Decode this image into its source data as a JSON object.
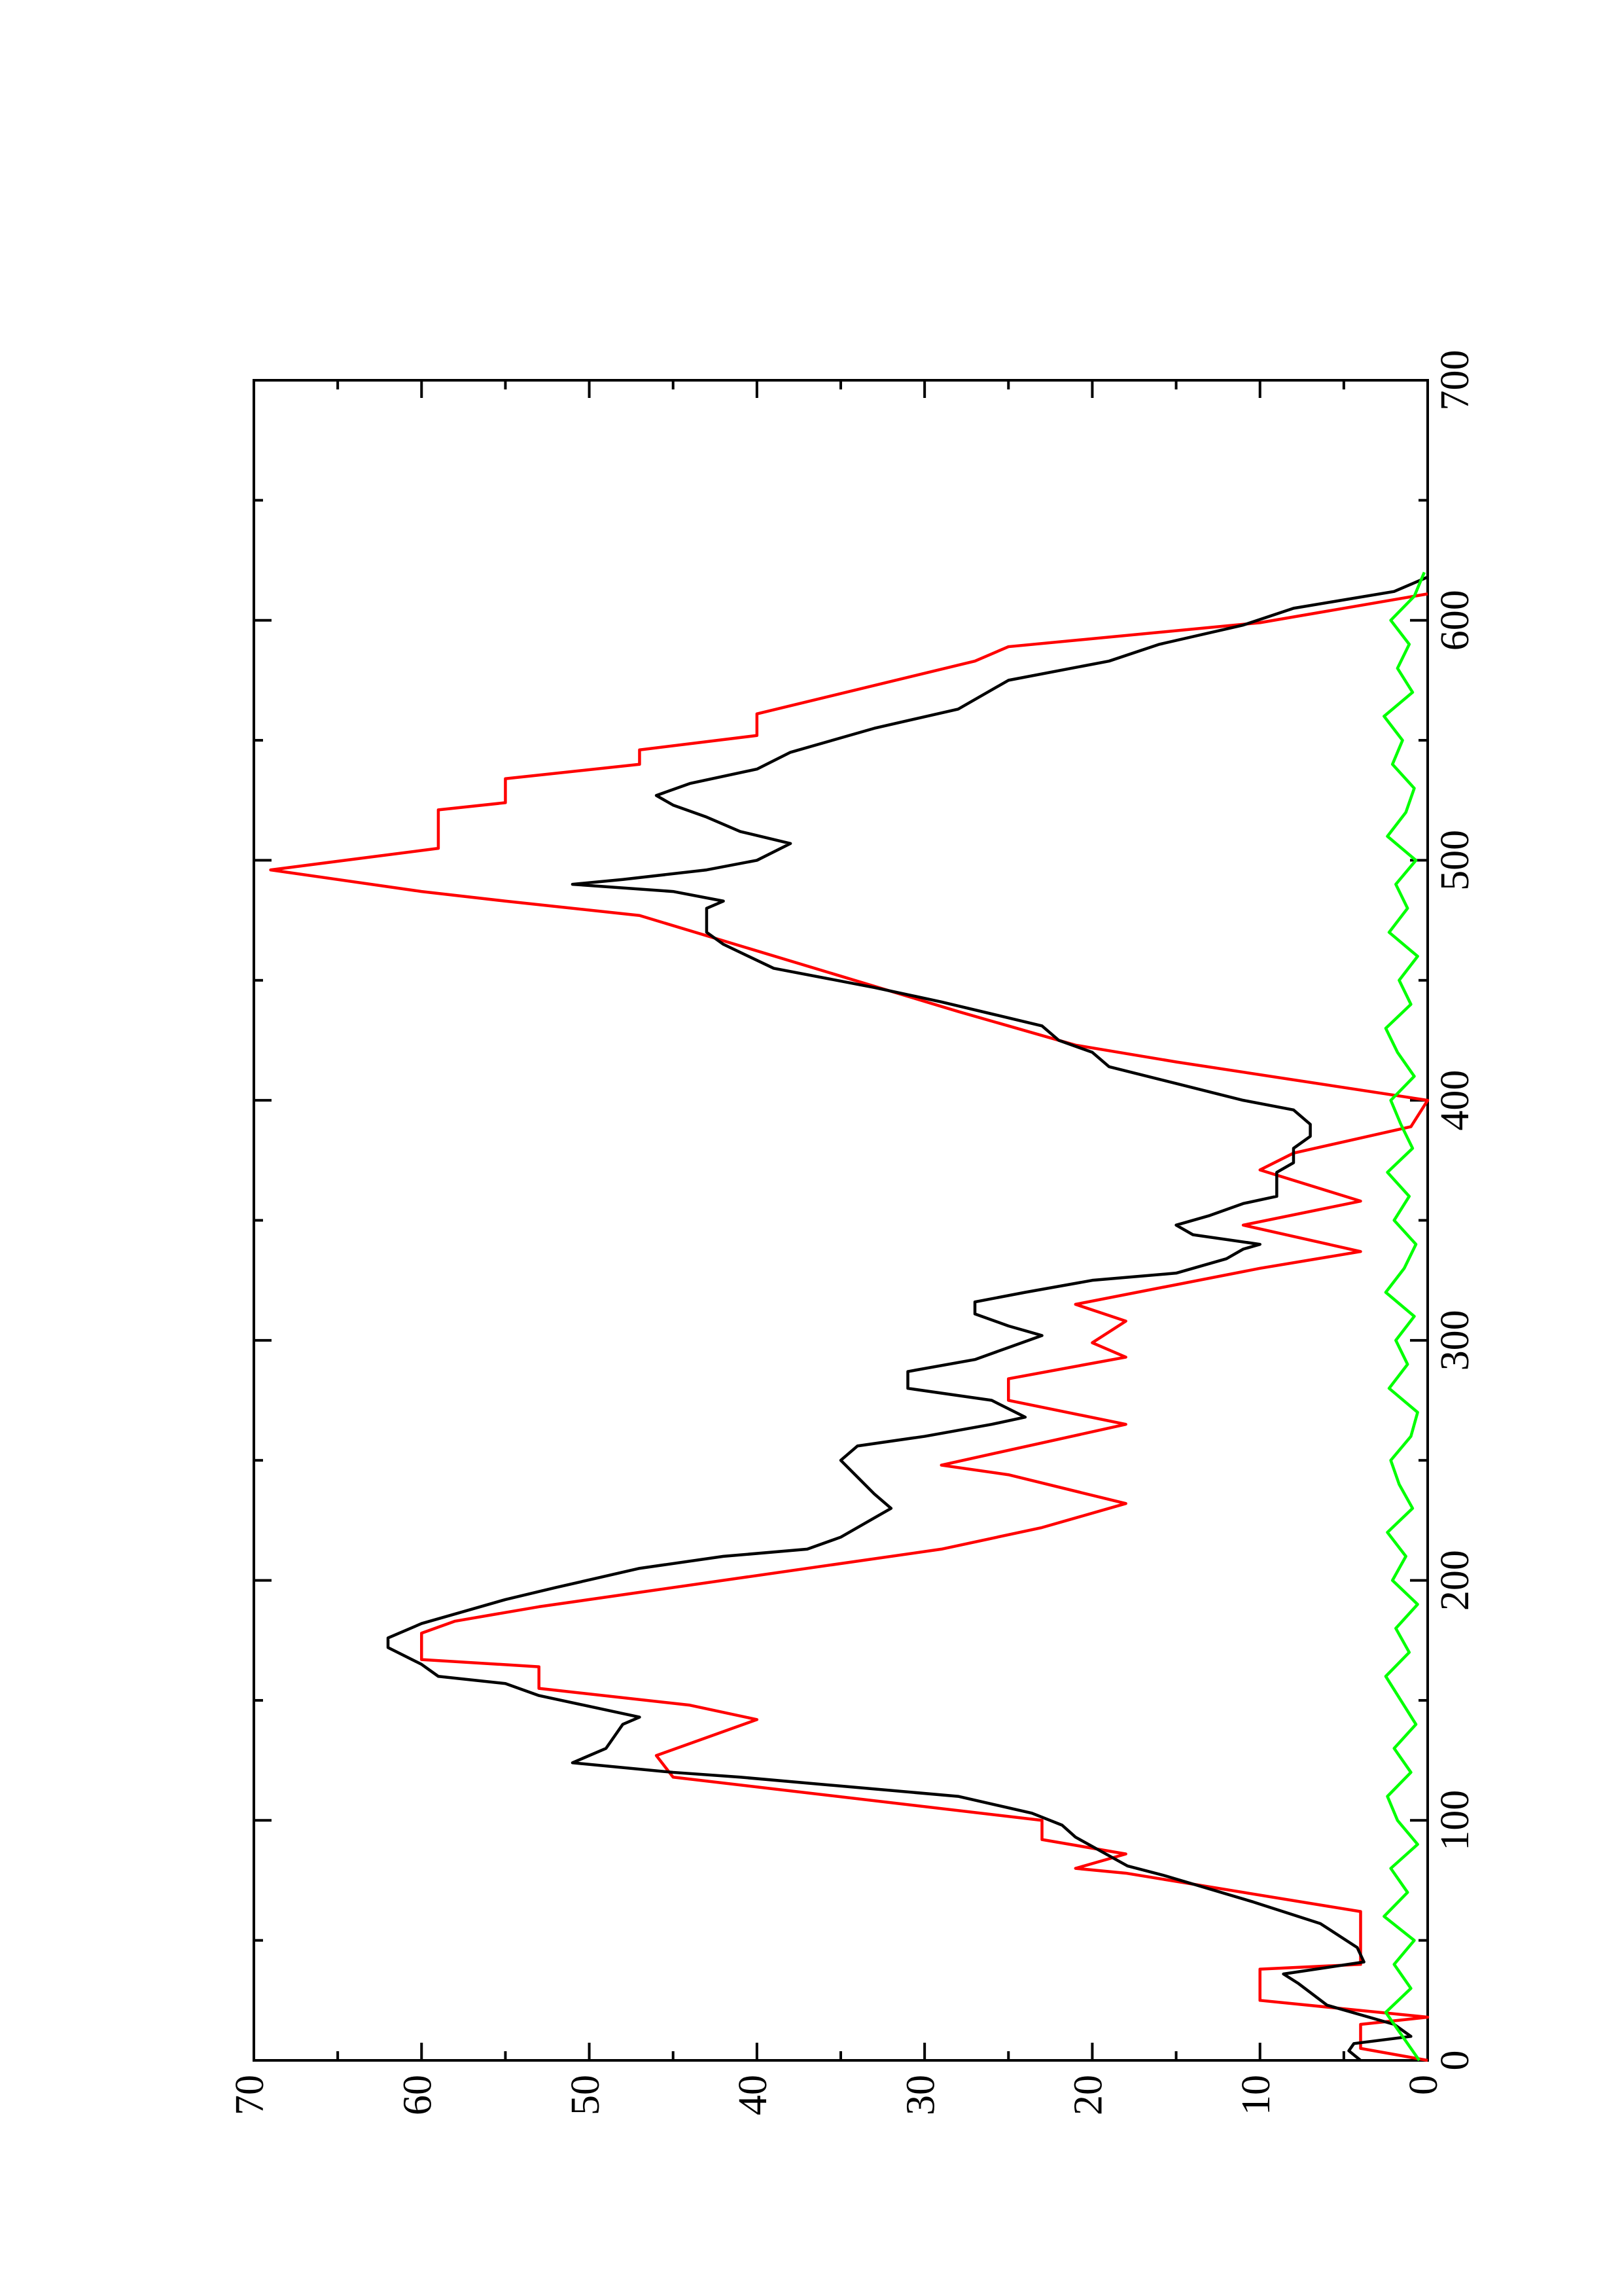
{
  "chart_data": {
    "type": "line",
    "xlim": [
      0,
      700
    ],
    "xticks": [
      0,
      100,
      200,
      300,
      400,
      500,
      600,
      700
    ],
    "xminorticks": [
      50,
      150,
      250,
      350,
      450,
      550,
      650
    ],
    "ylim": [
      0,
      70
    ],
    "yticks": [
      0,
      10,
      20,
      30,
      40,
      50,
      60,
      70
    ],
    "yminorticks": [
      5,
      15,
      25,
      35,
      45,
      55,
      65
    ],
    "rotation": -90,
    "series": [
      {
        "color": "#ff0000",
        "x": [
          0,
          5,
          15,
          18,
          25,
          38,
          40,
          62,
          78,
          80,
          86,
          92,
          100,
          118,
          127,
          142,
          148,
          155,
          164,
          167,
          178,
          183,
          189,
          195,
          213,
          222,
          232,
          244,
          248,
          265,
          275,
          284,
          293,
          299,
          308,
          315,
          330,
          337,
          348,
          358,
          371,
          378,
          389,
          400,
          416,
          423,
          431,
          437,
          477,
          483,
          487,
          496,
          505,
          521,
          524,
          534,
          540,
          546,
          552,
          561,
          583,
          589,
          599,
          611
        ],
        "values": [
          0,
          4,
          4,
          0,
          10,
          10,
          4,
          4,
          18,
          21,
          18,
          23,
          23,
          45,
          46,
          40,
          44,
          53,
          53,
          60,
          60,
          58,
          53,
          47,
          29,
          23,
          18,
          25,
          29,
          18,
          25,
          25,
          18,
          20,
          18,
          21,
          10,
          4,
          11,
          4,
          10,
          8,
          1,
          0,
          15,
          21,
          25,
          28,
          47,
          55,
          60,
          69,
          59,
          59,
          55,
          55,
          47,
          47,
          40,
          40,
          27,
          25,
          10,
          0
        ]
      },
      {
        "color": "#000000",
        "x": [
          0,
          4,
          7,
          10,
          15,
          23,
          32,
          36,
          41,
          47,
          57,
          66,
          77,
          81,
          93,
          98,
          103,
          110,
          118,
          120,
          124,
          130,
          140,
          143,
          146,
          152,
          157,
          160,
          165,
          172,
          176,
          182,
          186,
          192,
          197,
          205,
          210,
          213,
          218,
          226,
          230,
          236,
          243,
          250,
          256,
          260,
          265,
          268,
          275,
          280,
          287,
          292,
          297,
          302,
          306,
          311,
          316,
          320,
          325,
          328,
          334,
          338,
          340,
          344,
          348,
          352,
          357,
          360,
          364,
          370,
          374,
          380,
          385,
          390,
          396,
          400,
          407,
          414,
          420,
          425,
          431,
          436,
          441,
          447,
          455,
          465,
          470,
          480,
          483,
          487,
          490,
          492,
          496,
          500,
          507,
          512,
          518,
          523,
          527,
          532,
          538,
          545,
          555,
          563,
          575,
          583,
          590,
          598,
          605,
          612,
          618
        ],
        "values": [
          4,
          4.7,
          4.4,
          1,
          2,
          6,
          7.7,
          8.6,
          3.8,
          4.2,
          6.4,
          10.4,
          15.7,
          17.9,
          21,
          21.8,
          23.6,
          28,
          41,
          45,
          51,
          49,
          48,
          47,
          49,
          53,
          55,
          59,
          60,
          62,
          62,
          60,
          58,
          55,
          52,
          47,
          42,
          37,
          35,
          33,
          32,
          33,
          34,
          35,
          34,
          30,
          26,
          24,
          26,
          31,
          31,
          27,
          25,
          23,
          25,
          27,
          27,
          24,
          20,
          15,
          12,
          11,
          10,
          14,
          15,
          13,
          11,
          9,
          9,
          9,
          8,
          8,
          7,
          7,
          8,
          11,
          15,
          19,
          20,
          22,
          23,
          26,
          29,
          33,
          39,
          42,
          43,
          43,
          42,
          45,
          51,
          48,
          43,
          40,
          38,
          41,
          43,
          45,
          46,
          44,
          40,
          38,
          33,
          28,
          25,
          19,
          16,
          11,
          8,
          2,
          0
        ]
      },
      {
        "color": "#00ff00",
        "x": [
          0,
          10,
          20,
          30,
          40,
          50,
          60,
          70,
          80,
          90,
          100,
          110,
          120,
          130,
          140,
          150,
          160,
          170,
          180,
          190,
          200,
          210,
          220,
          230,
          240,
          250,
          260,
          270,
          280,
          290,
          300,
          310,
          320,
          330,
          340,
          350,
          360,
          370,
          380,
          390,
          400,
          410,
          420,
          430,
          440,
          450,
          460,
          470,
          480,
          490,
          500,
          510,
          520,
          530,
          540,
          550,
          560,
          570,
          580,
          590,
          600,
          610,
          620
        ],
        "values": [
          0.5,
          1.5,
          2.5,
          1,
          2,
          0.8,
          2.6,
          1.2,
          2.2,
          0.6,
          1.8,
          2.4,
          1,
          2,
          0.7,
          1.6,
          2.5,
          1.1,
          1.9,
          0.6,
          2.1,
          1.3,
          2.4,
          0.9,
          1.7,
          2.2,
          1,
          0.6,
          2.3,
          1.2,
          1.9,
          0.8,
          2.5,
          1.4,
          0.7,
          2,
          1.1,
          2.4,
          0.9,
          1.6,
          2.2,
          0.8,
          1.8,
          2.5,
          1,
          1.7,
          0.6,
          2.3,
          1.2,
          1.9,
          0.7,
          2.4,
          1.3,
          0.8,
          2.1,
          1.5,
          2.6,
          0.9,
          1.8,
          1.1,
          2.2,
          0.8,
          0.2
        ]
      }
    ]
  }
}
